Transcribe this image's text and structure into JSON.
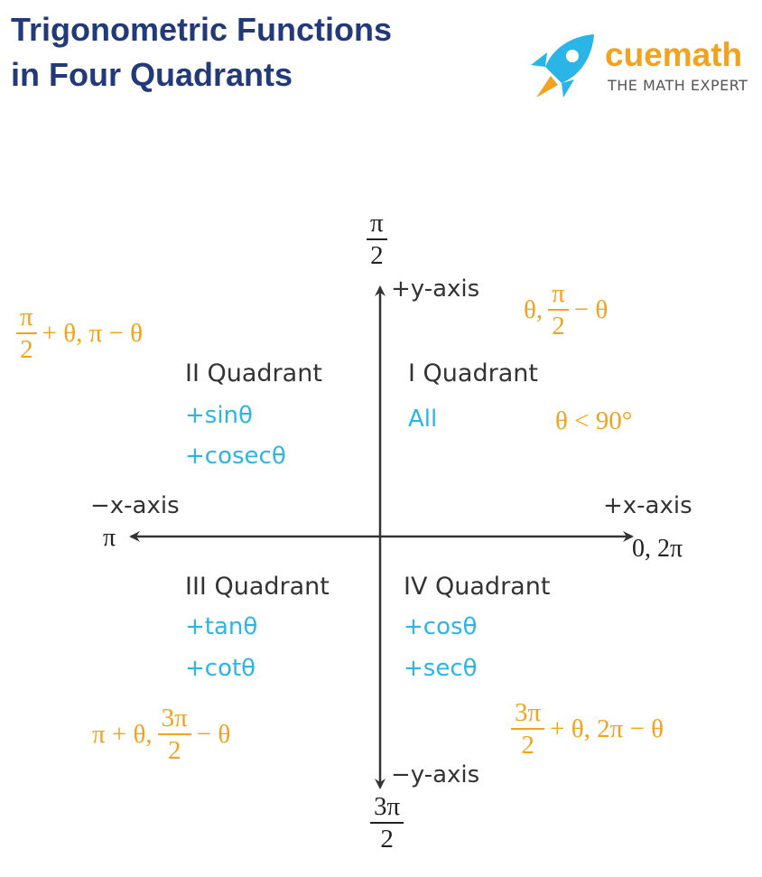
{
  "header": {
    "title": [
      "Trigonometric Functions",
      "in Four Quadrants"
    ]
  },
  "logo": {
    "name": "cuemath",
    "tagline": "THE MATH EXPERT"
  },
  "axes": {
    "top": {
      "numerator": "π",
      "denominator": "2",
      "label": "+y-axis"
    },
    "bottom": {
      "numerator": "3π",
      "denominator": "2",
      "label": "−y-axis"
    },
    "left": {
      "label": "−x-axis",
      "angle": "π"
    },
    "right": {
      "label": "+x-axis",
      "angle": "0, 2π"
    }
  },
  "quadrants": [
    {
      "name": "I Quadrant",
      "functions": [
        "All"
      ],
      "condition": "θ < 90°",
      "angles": {
        "prefix": "θ,",
        "numerator": "π",
        "denominator": "2",
        "suffix": "− θ"
      }
    },
    {
      "name": "II Quadrant",
      "functions": [
        "+sinθ",
        "+cosecθ"
      ],
      "angles": {
        "numerator": "π",
        "denominator": "2",
        "suffix": "+ θ, π − θ"
      }
    },
    {
      "name": "III Quadrant",
      "functions": [
        "+tanθ",
        "+cotθ"
      ],
      "angles": {
        "prefix": "π + θ,",
        "numerator": "3π",
        "denominator": "2",
        "suffix": "− θ"
      }
    },
    {
      "name": "IV Quadrant",
      "functions": [
        "+cosθ",
        "+secθ"
      ],
      "angles": {
        "numerator": "3π",
        "denominator": "2",
        "suffix": "+ θ, 2π − θ"
      }
    }
  ]
}
